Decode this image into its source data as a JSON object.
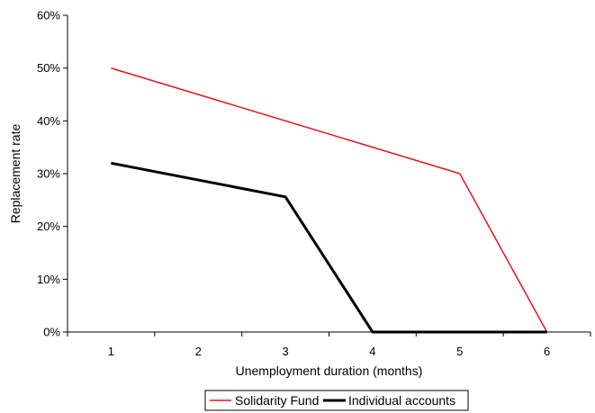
{
  "chart_data": {
    "type": "line",
    "x": [
      1,
      2,
      3,
      4,
      5,
      6
    ],
    "xlabel": "Unemployment duration (months)",
    "ylabel": "Replacement rate",
    "ylim": [
      0,
      0.6
    ],
    "yticks": [
      0,
      0.1,
      0.2,
      0.3,
      0.4,
      0.5,
      0.6
    ],
    "ytick_labels": [
      "0%",
      "10%",
      "20%",
      "30%",
      "40%",
      "50%",
      "60%"
    ],
    "xtick_labels": [
      "1",
      "2",
      "3",
      "4",
      "5",
      "6"
    ],
    "grid": false,
    "legend_position": "bottom",
    "series": [
      {
        "name": "Solidarity Fund",
        "color": "#e8141c",
        "points": [
          [
            1,
            0.5
          ],
          [
            5,
            0.3
          ],
          [
            6,
            0.0
          ]
        ]
      },
      {
        "name": "Individual accounts",
        "color": "#000000",
        "points": [
          [
            1,
            0.32
          ],
          [
            3,
            0.256
          ],
          [
            4,
            0.0
          ],
          [
            6,
            0.0
          ]
        ]
      }
    ]
  }
}
